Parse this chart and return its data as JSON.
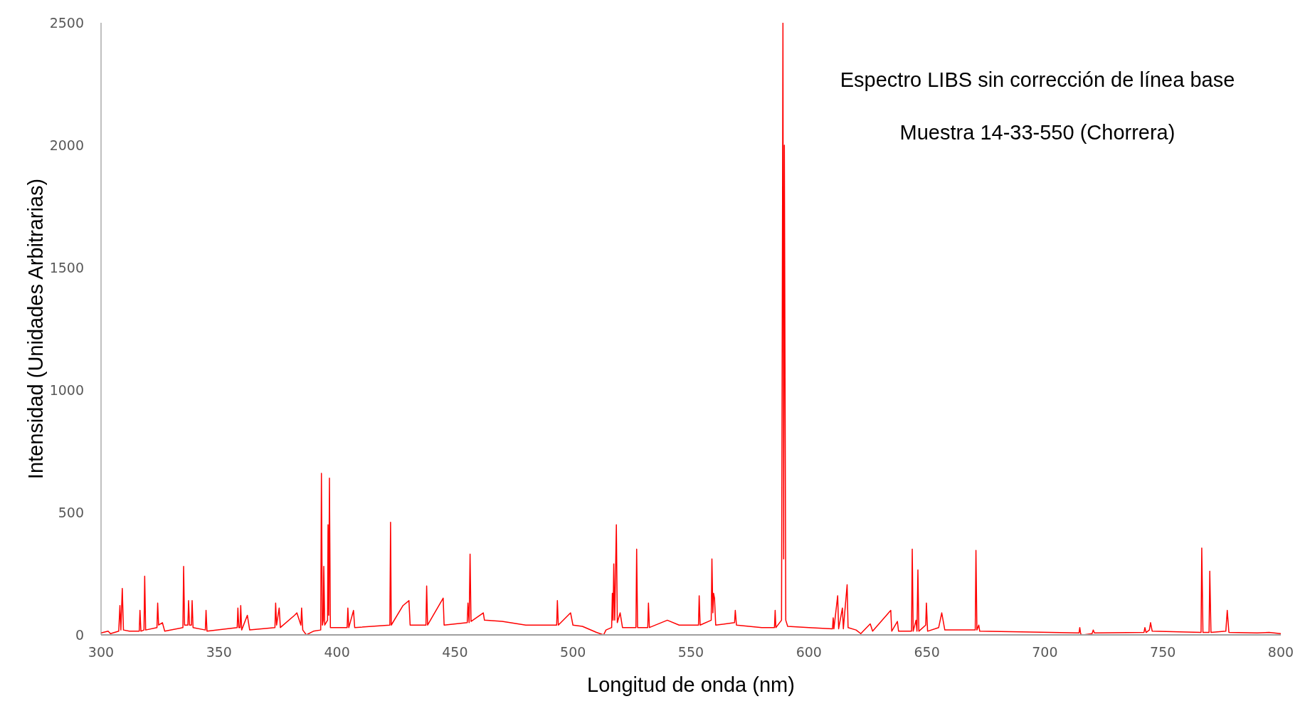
{
  "chart_data": {
    "type": "line",
    "title": "Espectro LIBS sin corrección de línea base",
    "subtitle": "Muestra 14-33-550 (Chorrera)",
    "xlabel": "Longitud de onda (nm)",
    "ylabel": "Intensidad (Unidades Arbitrarias)",
    "xlim": [
      300,
      800
    ],
    "xticks": [
      300,
      350,
      400,
      450,
      500,
      550,
      600,
      650,
      700,
      750,
      800
    ],
    "ylim": [
      0,
      2500
    ],
    "yticks": [
      0,
      500,
      1000,
      1500,
      2000,
      2500
    ],
    "grid": false,
    "legend": false,
    "marker": "none",
    "line_style": "solid",
    "series": [
      {
        "color": "#ff0000",
        "x": [
          300,
          303,
          304,
          307.5,
          308,
          308.4,
          309,
          309.5,
          312,
          316.2,
          316.5,
          316.9,
          318.2,
          318.5,
          318.9,
          323.7,
          324,
          324.4,
          326,
          327,
          334.7,
          335,
          335.4,
          336.8,
          337.1,
          337.5,
          338.3,
          338.6,
          339,
          344.2,
          344.5,
          344.9,
          357.7,
          358,
          358.4,
          358.9,
          359.2,
          359.6,
          362,
          363,
          373.7,
          374,
          374.4,
          375.5,
          376,
          382,
          383,
          384.7,
          385,
          385.5,
          387,
          390,
          393.1,
          393.4,
          393.8,
          394.2,
          394.4,
          394.8,
          396,
          396.2,
          396.5,
          396.8,
          397.2,
          404.3,
          404.6,
          405,
          407,
          407.5,
          422.4,
          422.7,
          423,
          428,
          430.5,
          431,
          437.7,
          438,
          438.4,
          445,
          445.4,
          455.2,
          455.5,
          456,
          456.4,
          456.8,
          462,
          462.5,
          470,
          480,
          493.1,
          493.4,
          493.8,
          499,
          500,
          504,
          510,
          513,
          514,
          516.4,
          516.7,
          517,
          517.3,
          517.7,
          518.4,
          518.8,
          520,
          521,
          526.7,
          527,
          527.4,
          531.7,
          532,
          532.4,
          540,
          545,
          553.2,
          553.5,
          553.9,
          558.6,
          558.9,
          559.3,
          559.6,
          560,
          560.5,
          568.5,
          568.8,
          569.3,
          580,
          585.4,
          585.7,
          586,
          588.4,
          589.0,
          589.3,
          589.6,
          590.2,
          591,
          600,
          610,
          610.3,
          610.6,
          612.2,
          612.6,
          614.2,
          614.6,
          616.2,
          616.6,
          620,
          622,
          623,
          626,
          627,
          634.7,
          635.1,
          637.5,
          638,
          643.5,
          643.8,
          644.2,
          645.4,
          645.8,
          646.2,
          646.6,
          649.5,
          649.8,
          650.3,
          655,
          656.3,
          657.6,
          670.5,
          670.8,
          671.2,
          672,
          672.4,
          690,
          714.5,
          714.8,
          715.2,
          716,
          720,
          720.5,
          721,
          742,
          742.4,
          742.9,
          744.3,
          744.8,
          745.5,
          766.2,
          766.5,
          767,
          769.6,
          769.9,
          770.4,
          776.7,
          777.3,
          778,
          790,
          795,
          800
        ],
        "values": [
          8,
          15,
          5,
          15,
          120,
          20,
          190,
          20,
          15,
          15,
          100,
          15,
          20,
          240,
          20,
          30,
          130,
          40,
          50,
          15,
          30,
          280,
          40,
          40,
          140,
          40,
          40,
          140,
          30,
          20,
          100,
          15,
          30,
          110,
          30,
          30,
          120,
          20,
          80,
          20,
          30,
          130,
          40,
          110,
          30,
          80,
          90,
          40,
          110,
          20,
          0,
          15,
          20,
          660,
          40,
          60,
          280,
          40,
          60,
          450,
          80,
          640,
          30,
          30,
          110,
          30,
          100,
          30,
          40,
          460,
          40,
          120,
          140,
          40,
          40,
          200,
          40,
          150,
          40,
          50,
          130,
          50,
          330,
          55,
          90,
          60,
          55,
          40,
          40,
          140,
          40,
          90,
          40,
          35,
          10,
          0,
          20,
          30,
          170,
          60,
          290,
          60,
          450,
          50,
          90,
          30,
          30,
          350,
          30,
          30,
          130,
          30,
          60,
          40,
          40,
          160,
          40,
          60,
          310,
          90,
          170,
          150,
          40,
          50,
          100,
          40,
          30,
          30,
          100,
          30,
          60,
          2500,
          310,
          2000,
          60,
          35,
          30,
          25,
          70,
          25,
          160,
          25,
          110,
          25,
          205,
          30,
          20,
          5,
          15,
          45,
          15,
          100,
          15,
          55,
          15,
          15,
          350,
          15,
          60,
          15,
          265,
          15,
          40,
          130,
          15,
          30,
          90,
          20,
          20,
          345,
          20,
          40,
          15,
          12,
          8,
          30,
          3,
          0,
          5,
          20,
          8,
          10,
          30,
          10,
          20,
          50,
          15,
          10,
          355,
          10,
          10,
          260,
          10,
          15,
          100,
          10,
          8,
          10,
          5
        ]
      }
    ]
  }
}
